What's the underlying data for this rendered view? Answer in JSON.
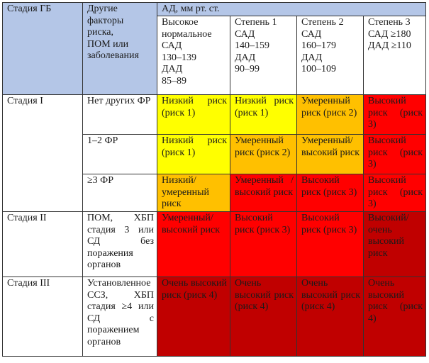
{
  "header": {
    "stage_col": "Стадия ГБ",
    "factors_col": "Другие\nфакторы\nриска,\nПОМ или\nзаболевания",
    "bp_group": "АД, мм рт. ст.",
    "bp_columns": [
      "Высокое\nнормальное\nСАД\n130–139\nДАД\n85–89",
      "Степень 1\nСАД\n140–159\nДАД\n90–99",
      "Степень 2\nСАД\n160–179\nДАД\n100–109",
      "Степень 3\nСАД ≥180\nДАД ≥110"
    ]
  },
  "colors": {
    "header": "#b4c6e7",
    "low": "#ffff00",
    "moderate": "#ffc000",
    "high": "#ff0000",
    "very_high": "#c00000"
  },
  "rows": [
    {
      "stage": "Стадия I",
      "factors": "Нет других ФР",
      "cells": [
        {
          "text": "Низкий риск (риск 1)",
          "level": "low"
        },
        {
          "text": "Низкий риск (риск 1)",
          "level": "low"
        },
        {
          "text": "Умеренный риск (риск 2)",
          "level": "moderate"
        },
        {
          "text": "Высокий риск (риск 3)",
          "level": "high"
        }
      ]
    },
    {
      "stage": "",
      "factors": "1–2 ФР",
      "cells": [
        {
          "text": "Низкий риск (риск 1)",
          "level": "low"
        },
        {
          "text": "Умеренный риск (риск 2)",
          "level": "moderate"
        },
        {
          "text": "Умеренный/ высокий риск",
          "level": "moderate"
        },
        {
          "text": "Высокий риск (риск 3)",
          "level": "high"
        }
      ]
    },
    {
      "stage": "",
      "factors": "≥3 ФР",
      "cells": [
        {
          "text": "Низкий/ умеренный риск",
          "level": "moderate"
        },
        {
          "text": "Умеренный / высокий риск",
          "level": "high"
        },
        {
          "text": "Высокий риск (риск 3)",
          "level": "high"
        },
        {
          "text": "Высокий риск (риск 3)",
          "level": "high"
        }
      ]
    },
    {
      "stage": "Стадия II",
      "factors": "ПОМ, ХБП стадия 3 или СД без поражения органов",
      "cells": [
        {
          "text": "Умеренный/ высокий риск",
          "level": "high"
        },
        {
          "text": "Высокий риск (риск 3)",
          "level": "high"
        },
        {
          "text": "Высокий риск (риск 3)",
          "level": "high"
        },
        {
          "text": "Высокий/ очень высокий риск",
          "level": "very_high"
        }
      ]
    },
    {
      "stage": "Стадия III",
      "factors": "Установленное ССЗ, ХБП стадия ≥4 или СД с поражением органов",
      "cells": [
        {
          "text": "Очень высокий риск (риск 4)",
          "level": "very_high"
        },
        {
          "text": "Очень высокий риск (риск 4)",
          "level": "very_high"
        },
        {
          "text": "Очень высокий риск (риск 4)",
          "level": "very_high"
        },
        {
          "text": "Очень высокий риск (риск 4)",
          "level": "very_high"
        }
      ]
    }
  ]
}
